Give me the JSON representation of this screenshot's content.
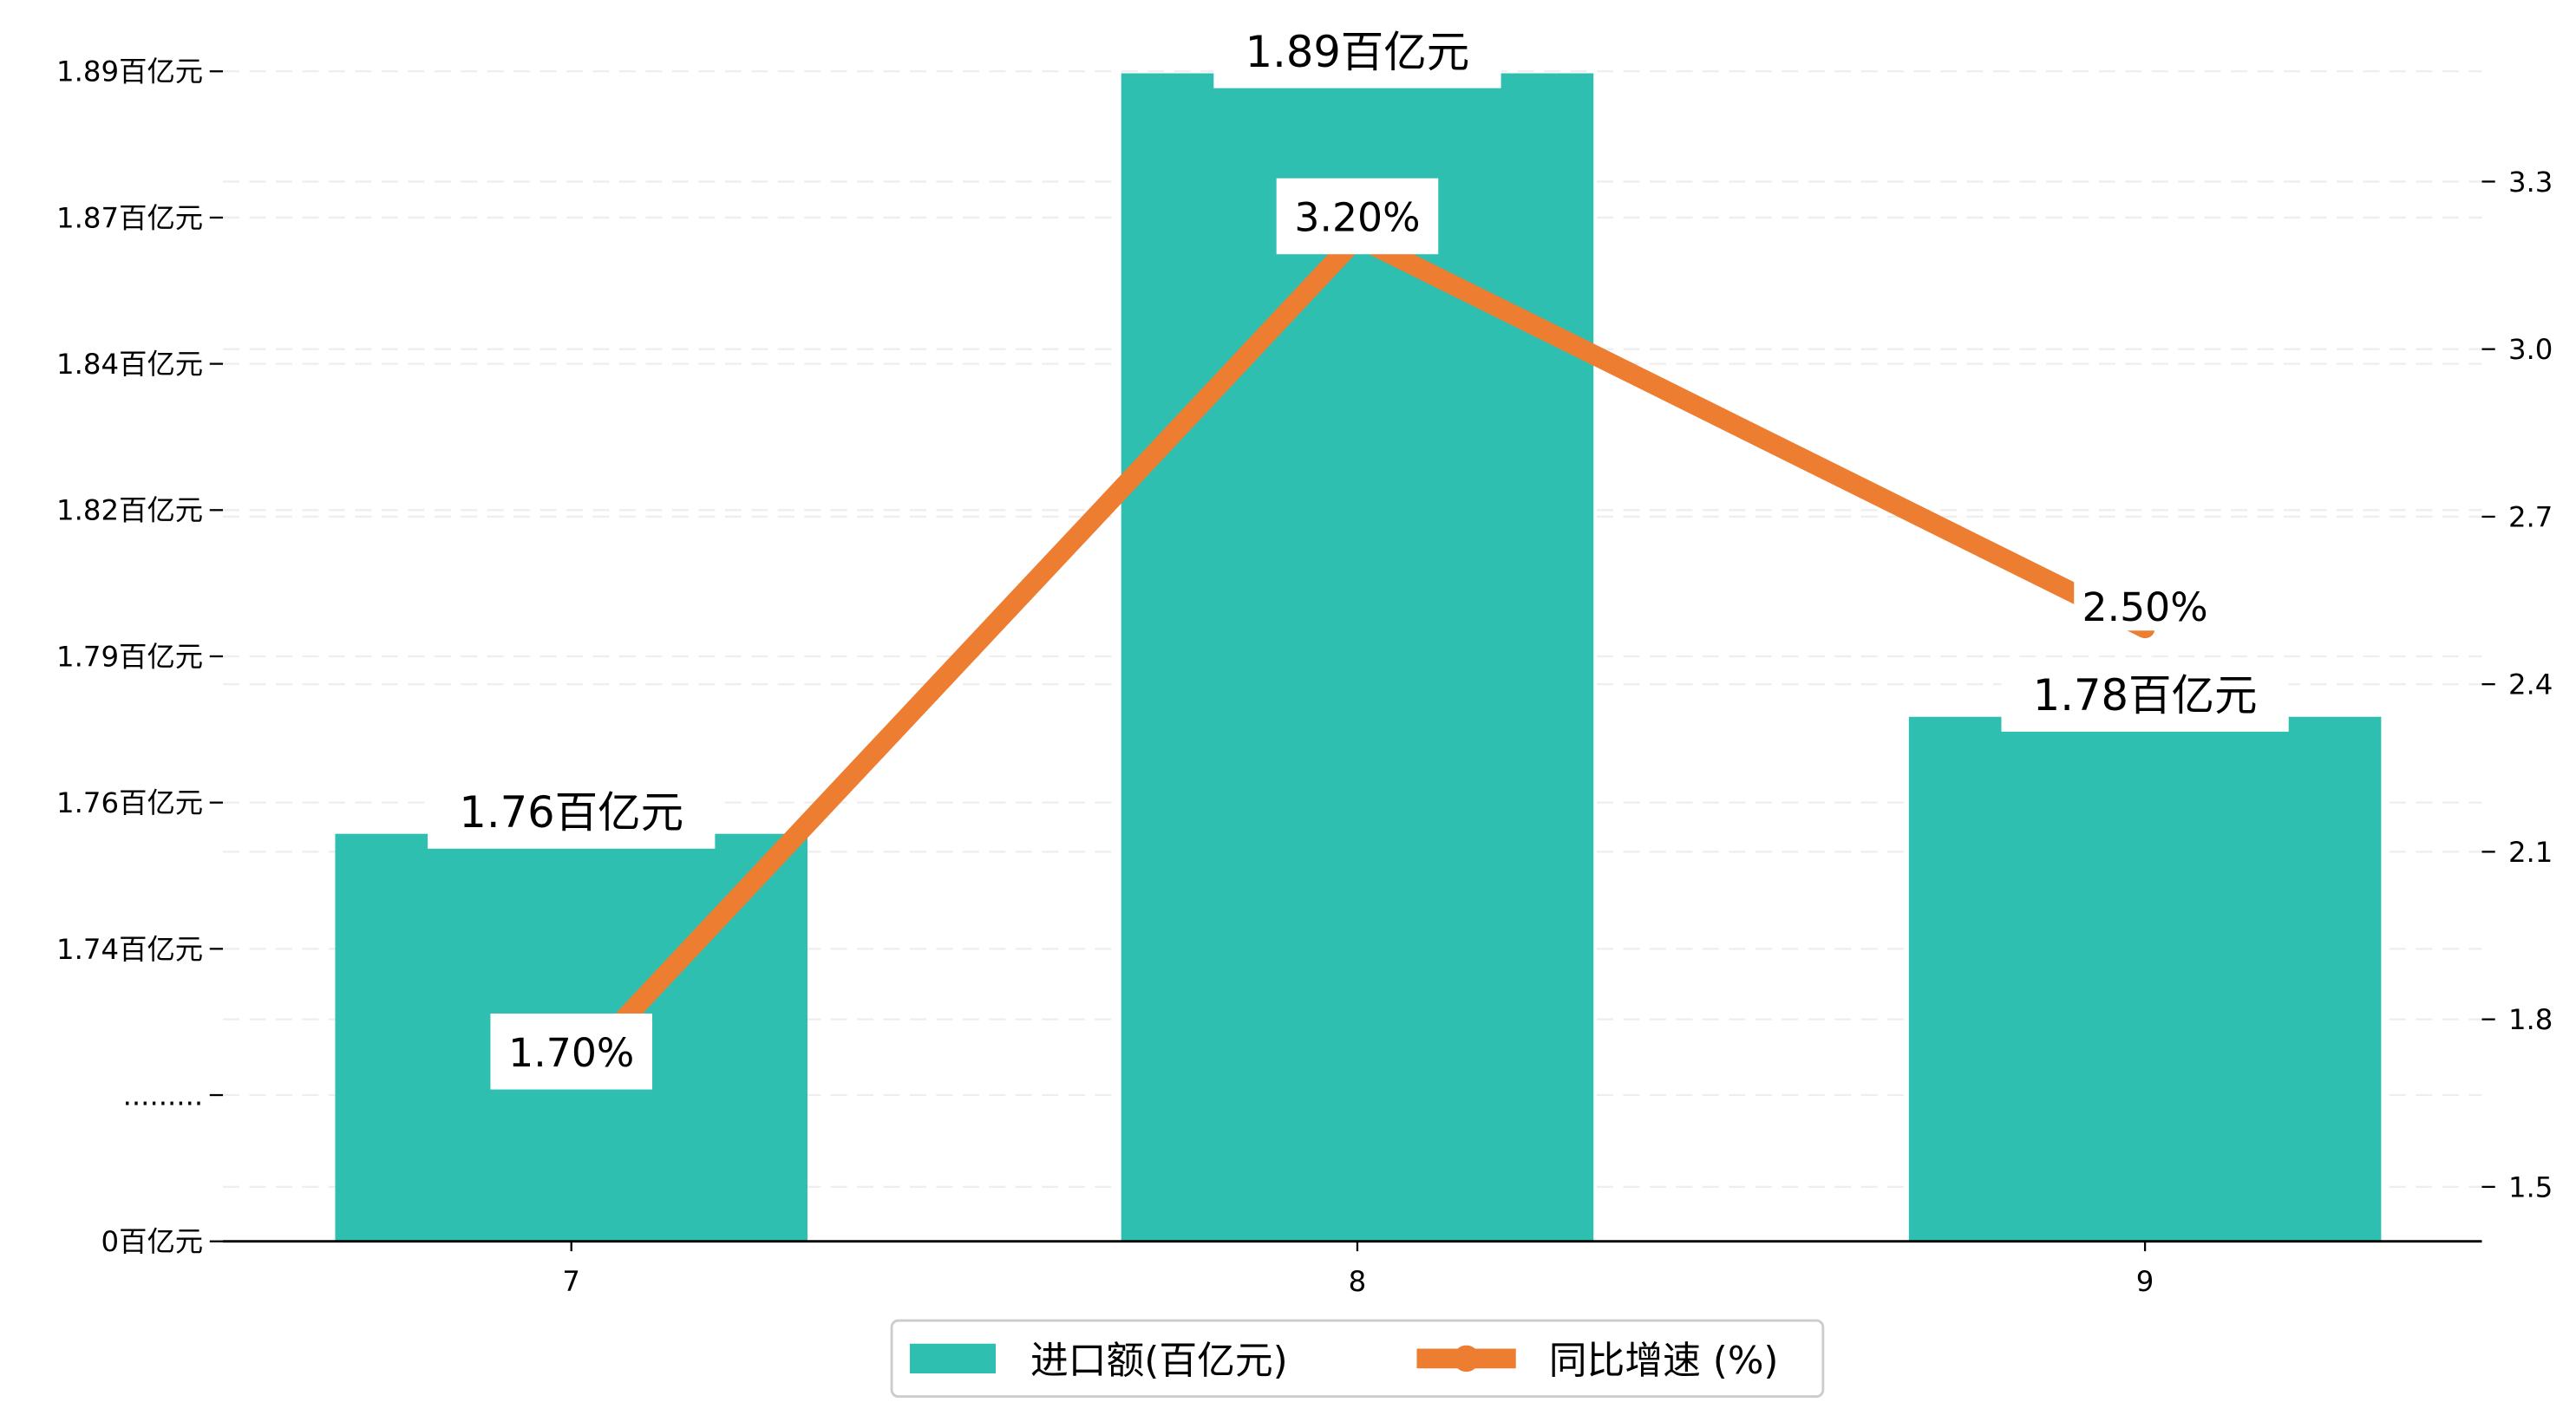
{
  "chart_data": {
    "type": "bar+line",
    "categories": [
      "7",
      "8",
      "9"
    ],
    "series": [
      {
        "name": "进口额(百亿元)",
        "type": "bar",
        "axis": "left",
        "values": [
          1.76,
          1.89,
          1.78
        ],
        "labels": [
          "1.76百亿元",
          "1.89百亿元",
          "1.78百亿元"
        ],
        "color": "#2EBFB0"
      },
      {
        "name": "同比增速 (%)",
        "type": "line",
        "axis": "right",
        "values": [
          1.7,
          3.2,
          2.5
        ],
        "labels": [
          "1.70%",
          "3.20%",
          "2.50%"
        ],
        "color": "#ED7D31"
      }
    ],
    "left_axis": {
      "tick_labels": [
        "0百亿元",
        ".........",
        "1.74百亿元",
        "1.76百亿元",
        "1.79百亿元",
        "1.82百亿元",
        "1.84百亿元",
        "1.87百亿元",
        "1.89百亿元"
      ],
      "broken": true,
      "range": [
        1.74,
        1.89
      ]
    },
    "right_axis": {
      "tick_labels": [
        "1.5",
        "1.8",
        "2.1",
        "2.4",
        "2.7",
        "3.0",
        "3.3"
      ],
      "ticks": [
        1.5,
        1.8,
        2.1,
        2.4,
        2.7,
        3.0,
        3.3
      ],
      "range": [
        1.4,
        3.5
      ]
    },
    "grid": true,
    "legend": {
      "placement": "bottom-center",
      "entries": [
        "进口额(百亿元)",
        "同比增速 (%)"
      ]
    }
  }
}
